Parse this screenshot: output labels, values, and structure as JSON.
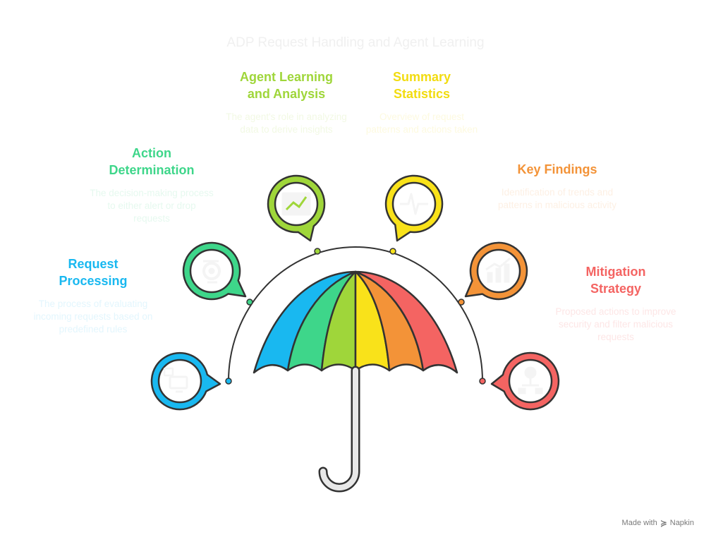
{
  "title": "ADP Request Handling and Agent Learning",
  "colors": {
    "blue": "#19b8f0",
    "teal": "#3ed68a",
    "green": "#9fd63a",
    "yellow": "#f9e21a",
    "orange": "#f39338",
    "red": "#f46462",
    "outline": "#333333",
    "handle": "#e8e8e8"
  },
  "sections": [
    {
      "id": "request-processing",
      "heading": "Request\nProcessing",
      "description": "The process of evaluating incoming requests based on predefined rules",
      "color": "#19b8f0",
      "icon": "computer-monitor-icon"
    },
    {
      "id": "action-determination",
      "heading": "Action\nDetermination",
      "description": "The decision-making process to either alert or drop requests",
      "color": "#3ed68a",
      "icon": "brain-gear-icon"
    },
    {
      "id": "agent-learning",
      "heading": "Agent Learning\nand Analysis",
      "description": "The agent's role in analyzing data to derive insights",
      "color": "#9fd63a",
      "icon": "line-chart-icon"
    },
    {
      "id": "summary-statistics",
      "heading": "Summary\nStatistics",
      "description": "Overview of request patterns and actions taken",
      "color": "#f9e21a",
      "icon": "pulse-wave-icon"
    },
    {
      "id": "key-findings",
      "heading": "Key Findings",
      "description": "Identification of trends and patterns in malicious activity",
      "color": "#f39338",
      "icon": "bar-trend-icon"
    },
    {
      "id": "mitigation-strategy",
      "heading": "Mitigation\nStrategy",
      "description": "Proposed actions to improve security and filter malicious requests",
      "color": "#f46462",
      "icon": "lightbulb-hierarchy-icon"
    }
  ],
  "footer": {
    "label": "Made with",
    "brand": "Napkin"
  }
}
